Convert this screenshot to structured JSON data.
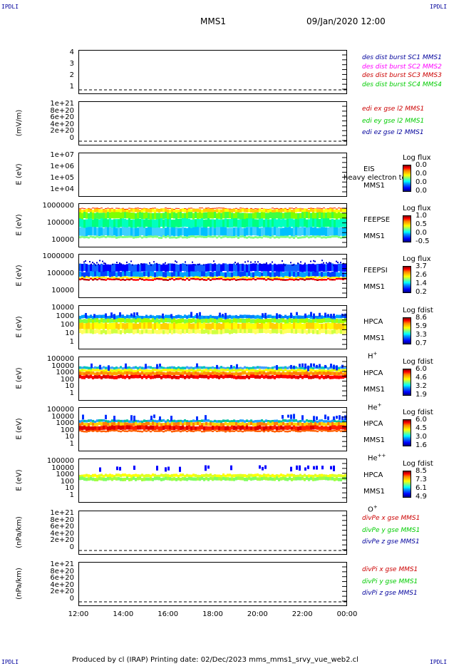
{
  "corners": {
    "tl": "IPDLI",
    "tr": "IPDLI",
    "bl": "IPDLI",
    "br": "IPDLI"
  },
  "header": {
    "spacecraft": "MMS1",
    "datetime": "09/Jan/2020 12:00"
  },
  "footer": {
    "text": "Produced by cl (IRAP)    Printing date: 02/Dec/2023    mms_mms1_srvy_vue_web2.cl"
  },
  "xaxis": {
    "ticks": [
      "12:00",
      "14:00",
      "16:00",
      "18:00",
      "20:00",
      "22:00",
      "00:00"
    ]
  },
  "chart_data": [
    {
      "type": "line",
      "panel": "des dist burst",
      "ylabel": "",
      "ylim": [
        0.5,
        4.5
      ],
      "yticks": [
        "4",
        "3",
        "2",
        "1"
      ],
      "legend": [
        {
          "name": "des dist burst SC1 MMS1",
          "color": "#00009c"
        },
        {
          "name": "des dist burst SC2 MMS2",
          "color": "#ff00ff"
        },
        {
          "name": "des dist burst SC3 MMS3",
          "color": "#cc0000"
        },
        {
          "name": "des dist burst SC4 MMS4",
          "color": "#00cc00"
        }
      ]
    },
    {
      "type": "line",
      "panel": "edi e gse",
      "ylabel": "(mV/m)",
      "ylim": [
        -2e+20,
        1.05e+21
      ],
      "yticks": [
        "1e+21",
        "8e+20",
        "6e+20",
        "4e+20",
        "2e+20",
        "0"
      ],
      "legend": [
        {
          "name": "edi ex gse l2 MMS1",
          "color": "#cc0000"
        },
        {
          "name": "edi ey gse l2 MMS1",
          "color": "#00cc00"
        },
        {
          "name": "edi ez gse l2 MMS1",
          "color": "#00009c"
        }
      ]
    },
    {
      "type": "heatmap",
      "panel": "EIS",
      "ylabel": "E (eV)",
      "ylim": [
        10000.0,
        10000000.0
      ],
      "yticks": [
        "1e+07",
        "1e+06",
        "1e+05",
        "1e+04"
      ],
      "labels": [
        "EIS",
        "MMS1"
      ],
      "overlay": "heavy electron to",
      "colorbar": {
        "title": "Log flux",
        "ticks": [
          "0.0",
          "0.0",
          "0.0",
          "0.0"
        ]
      }
    },
    {
      "type": "heatmap",
      "panel": "FEEPSE",
      "ylabel": "E (eV)",
      "ylim": [
        10000.0,
        1000000.0
      ],
      "yticks": [
        "1000000",
        "100000",
        "10000"
      ],
      "labels": [
        "FEEPSE",
        "MMS1"
      ],
      "colorbar": {
        "title": "Log flux",
        "ticks": [
          "1.0",
          "0.5",
          "0.0",
          "-0.5"
        ]
      }
    },
    {
      "type": "heatmap",
      "panel": "FEEPSI",
      "ylabel": "E (eV)",
      "ylim": [
        10000.0,
        1000000.0
      ],
      "yticks": [
        "1000000",
        "100000",
        "10000"
      ],
      "labels": [
        "FEEPSI",
        "MMS1"
      ],
      "colorbar": {
        "title": "Log flux",
        "ticks": [
          "3.7",
          "2.6",
          "1.4",
          "0.2"
        ]
      }
    },
    {
      "type": "heatmap",
      "panel": "HPCA H+",
      "ylabel": "E (eV)",
      "ylim": [
        1,
        10000
      ],
      "yticks": [
        "10000",
        "1000",
        "100",
        "10",
        "1"
      ],
      "labels": [
        "HPCA",
        "MMS1",
        "H+"
      ],
      "colorbar": {
        "title": "Log fdist",
        "ticks": [
          "8.6",
          "5.9",
          "3.3",
          "0.7"
        ]
      }
    },
    {
      "type": "heatmap",
      "panel": "HPCA He+",
      "ylabel": "E (eV)",
      "ylim": [
        1,
        100000
      ],
      "yticks": [
        "100000",
        "10000",
        "1000",
        "100",
        "10",
        "1"
      ],
      "labels": [
        "HPCA",
        "MMS1",
        "He+"
      ],
      "colorbar": {
        "title": "Log fdist",
        "ticks": [
          "6.0",
          "4.6",
          "3.2",
          "1.9"
        ]
      }
    },
    {
      "type": "heatmap",
      "panel": "HPCA He++",
      "ylabel": "E (eV)",
      "ylim": [
        1,
        100000
      ],
      "yticks": [
        "100000",
        "10000",
        "1000",
        "100",
        "10",
        "1"
      ],
      "labels": [
        "HPCA",
        "MMS1",
        "He++"
      ],
      "colorbar": {
        "title": "Log fdist",
        "ticks": [
          "6.0",
          "4.5",
          "3.0",
          "1.6"
        ]
      }
    },
    {
      "type": "heatmap",
      "panel": "HPCA O+",
      "ylabel": "E (eV)",
      "ylim": [
        1,
        100000
      ],
      "yticks": [
        "100000",
        "10000",
        "1000",
        "100",
        "10",
        "1"
      ],
      "labels": [
        "HPCA",
        "MMS1",
        "O+"
      ],
      "colorbar": {
        "title": "Log fdist",
        "ticks": [
          "8.5",
          "7.3",
          "6.1",
          "4.9"
        ]
      }
    },
    {
      "type": "line",
      "panel": "divPe",
      "ylabel": "(nPa/km)",
      "ylim": [
        -2e+20,
        1.05e+21
      ],
      "yticks": [
        "1e+21",
        "8e+20",
        "6e+20",
        "4e+20",
        "2e+20",
        "0"
      ],
      "legend": [
        {
          "name": "divPe x gse MMS1",
          "color": "#cc0000"
        },
        {
          "name": "divPe y gse MMS1",
          "color": "#00cc00"
        },
        {
          "name": "divPe z gse MMS1",
          "color": "#00009c"
        }
      ]
    },
    {
      "type": "line",
      "panel": "divPi",
      "ylabel": "(nPa/km)",
      "ylim": [
        -2e+20,
        1.05e+21
      ],
      "yticks": [
        "1e+21",
        "8e+20",
        "6e+20",
        "4e+20",
        "2e+20",
        "0"
      ],
      "legend": [
        {
          "name": "divPi x gse MMS1",
          "color": "#cc0000"
        },
        {
          "name": "divPi y gse MMS1",
          "color": "#00cc00"
        },
        {
          "name": "divPi z gse MMS1",
          "color": "#00009c"
        }
      ]
    }
  ]
}
